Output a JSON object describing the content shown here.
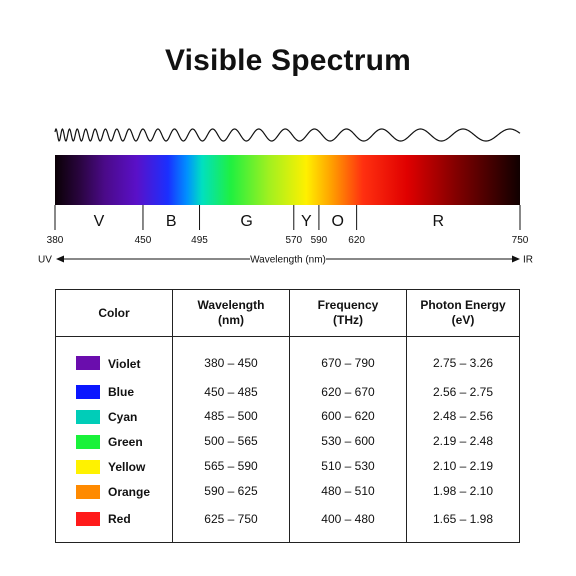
{
  "title": "Visible Spectrum",
  "colors": {
    "text": "#111111",
    "border": "#222222"
  },
  "spectrum": {
    "range_nm": [
      380,
      750
    ],
    "gradient": [
      {
        "nm": 380,
        "color": "#0a0005"
      },
      {
        "nm": 400,
        "color": "#2a0540"
      },
      {
        "nm": 420,
        "color": "#4b0a8a"
      },
      {
        "nm": 445,
        "color": "#5a10c8"
      },
      {
        "nm": 470,
        "color": "#1a30ff"
      },
      {
        "nm": 485,
        "color": "#0090ff"
      },
      {
        "nm": 497,
        "color": "#00e0c0"
      },
      {
        "nm": 520,
        "color": "#20f040"
      },
      {
        "nm": 550,
        "color": "#a0f020"
      },
      {
        "nm": 580,
        "color": "#fff000"
      },
      {
        "nm": 600,
        "color": "#ffa000"
      },
      {
        "nm": 625,
        "color": "#ff3010"
      },
      {
        "nm": 660,
        "color": "#e00000"
      },
      {
        "nm": 700,
        "color": "#800000"
      },
      {
        "nm": 750,
        "color": "#100000"
      }
    ],
    "band_letters": [
      {
        "letter": "V",
        "from": 380,
        "to": 450
      },
      {
        "letter": "B",
        "from": 450,
        "to": 495
      },
      {
        "letter": "G",
        "from": 495,
        "to": 570
      },
      {
        "letter": "Y",
        "from": 570,
        "to": 590
      },
      {
        "letter": "O",
        "from": 590,
        "to": 620
      },
      {
        "letter": "R",
        "from": 620,
        "to": 750
      }
    ],
    "ticks": [
      380,
      450,
      495,
      570,
      590,
      620,
      750
    ],
    "left_label": "UV",
    "right_label": "IR",
    "axis_label": "Wavelength (nm)"
  },
  "table": {
    "headers": {
      "color": "Color",
      "wavelength_line1": "Wavelength",
      "wavelength_line2": "(nm)",
      "frequency_line1": "Frequency",
      "frequency_line2": "(THz)",
      "energy_line1": "Photon Energy",
      "energy_line2": "(eV)"
    },
    "rows": [
      {
        "name": "Violet",
        "swatch": "#6a0dad",
        "wavelength": "380 – 450",
        "frequency": "670 – 790",
        "energy": "2.75 – 3.26"
      },
      {
        "name": "Blue",
        "swatch": "#0a16ff",
        "wavelength": "450 – 485",
        "frequency": "620 – 670",
        "energy": "2.56 – 2.75"
      },
      {
        "name": "Cyan",
        "swatch": "#00cdb8",
        "wavelength": "485 – 500",
        "frequency": "600 – 620",
        "energy": "2.48 – 2.56"
      },
      {
        "name": "Green",
        "swatch": "#19f23a",
        "wavelength": "500 – 565",
        "frequency": "530 – 600",
        "energy": "2.19 – 2.48"
      },
      {
        "name": "Yellow",
        "swatch": "#fff200",
        "wavelength": "565 – 590",
        "frequency": "510 – 530",
        "energy": "2.10 – 2.19"
      },
      {
        "name": "Orange",
        "swatch": "#ff8a00",
        "wavelength": "590 – 625",
        "frequency": "480 – 510",
        "energy": "1.98 – 2.10"
      },
      {
        "name": "Red",
        "swatch": "#ff1a1a",
        "wavelength": "625 – 750",
        "frequency": "400 – 480",
        "energy": "1.65 – 1.98"
      }
    ]
  }
}
